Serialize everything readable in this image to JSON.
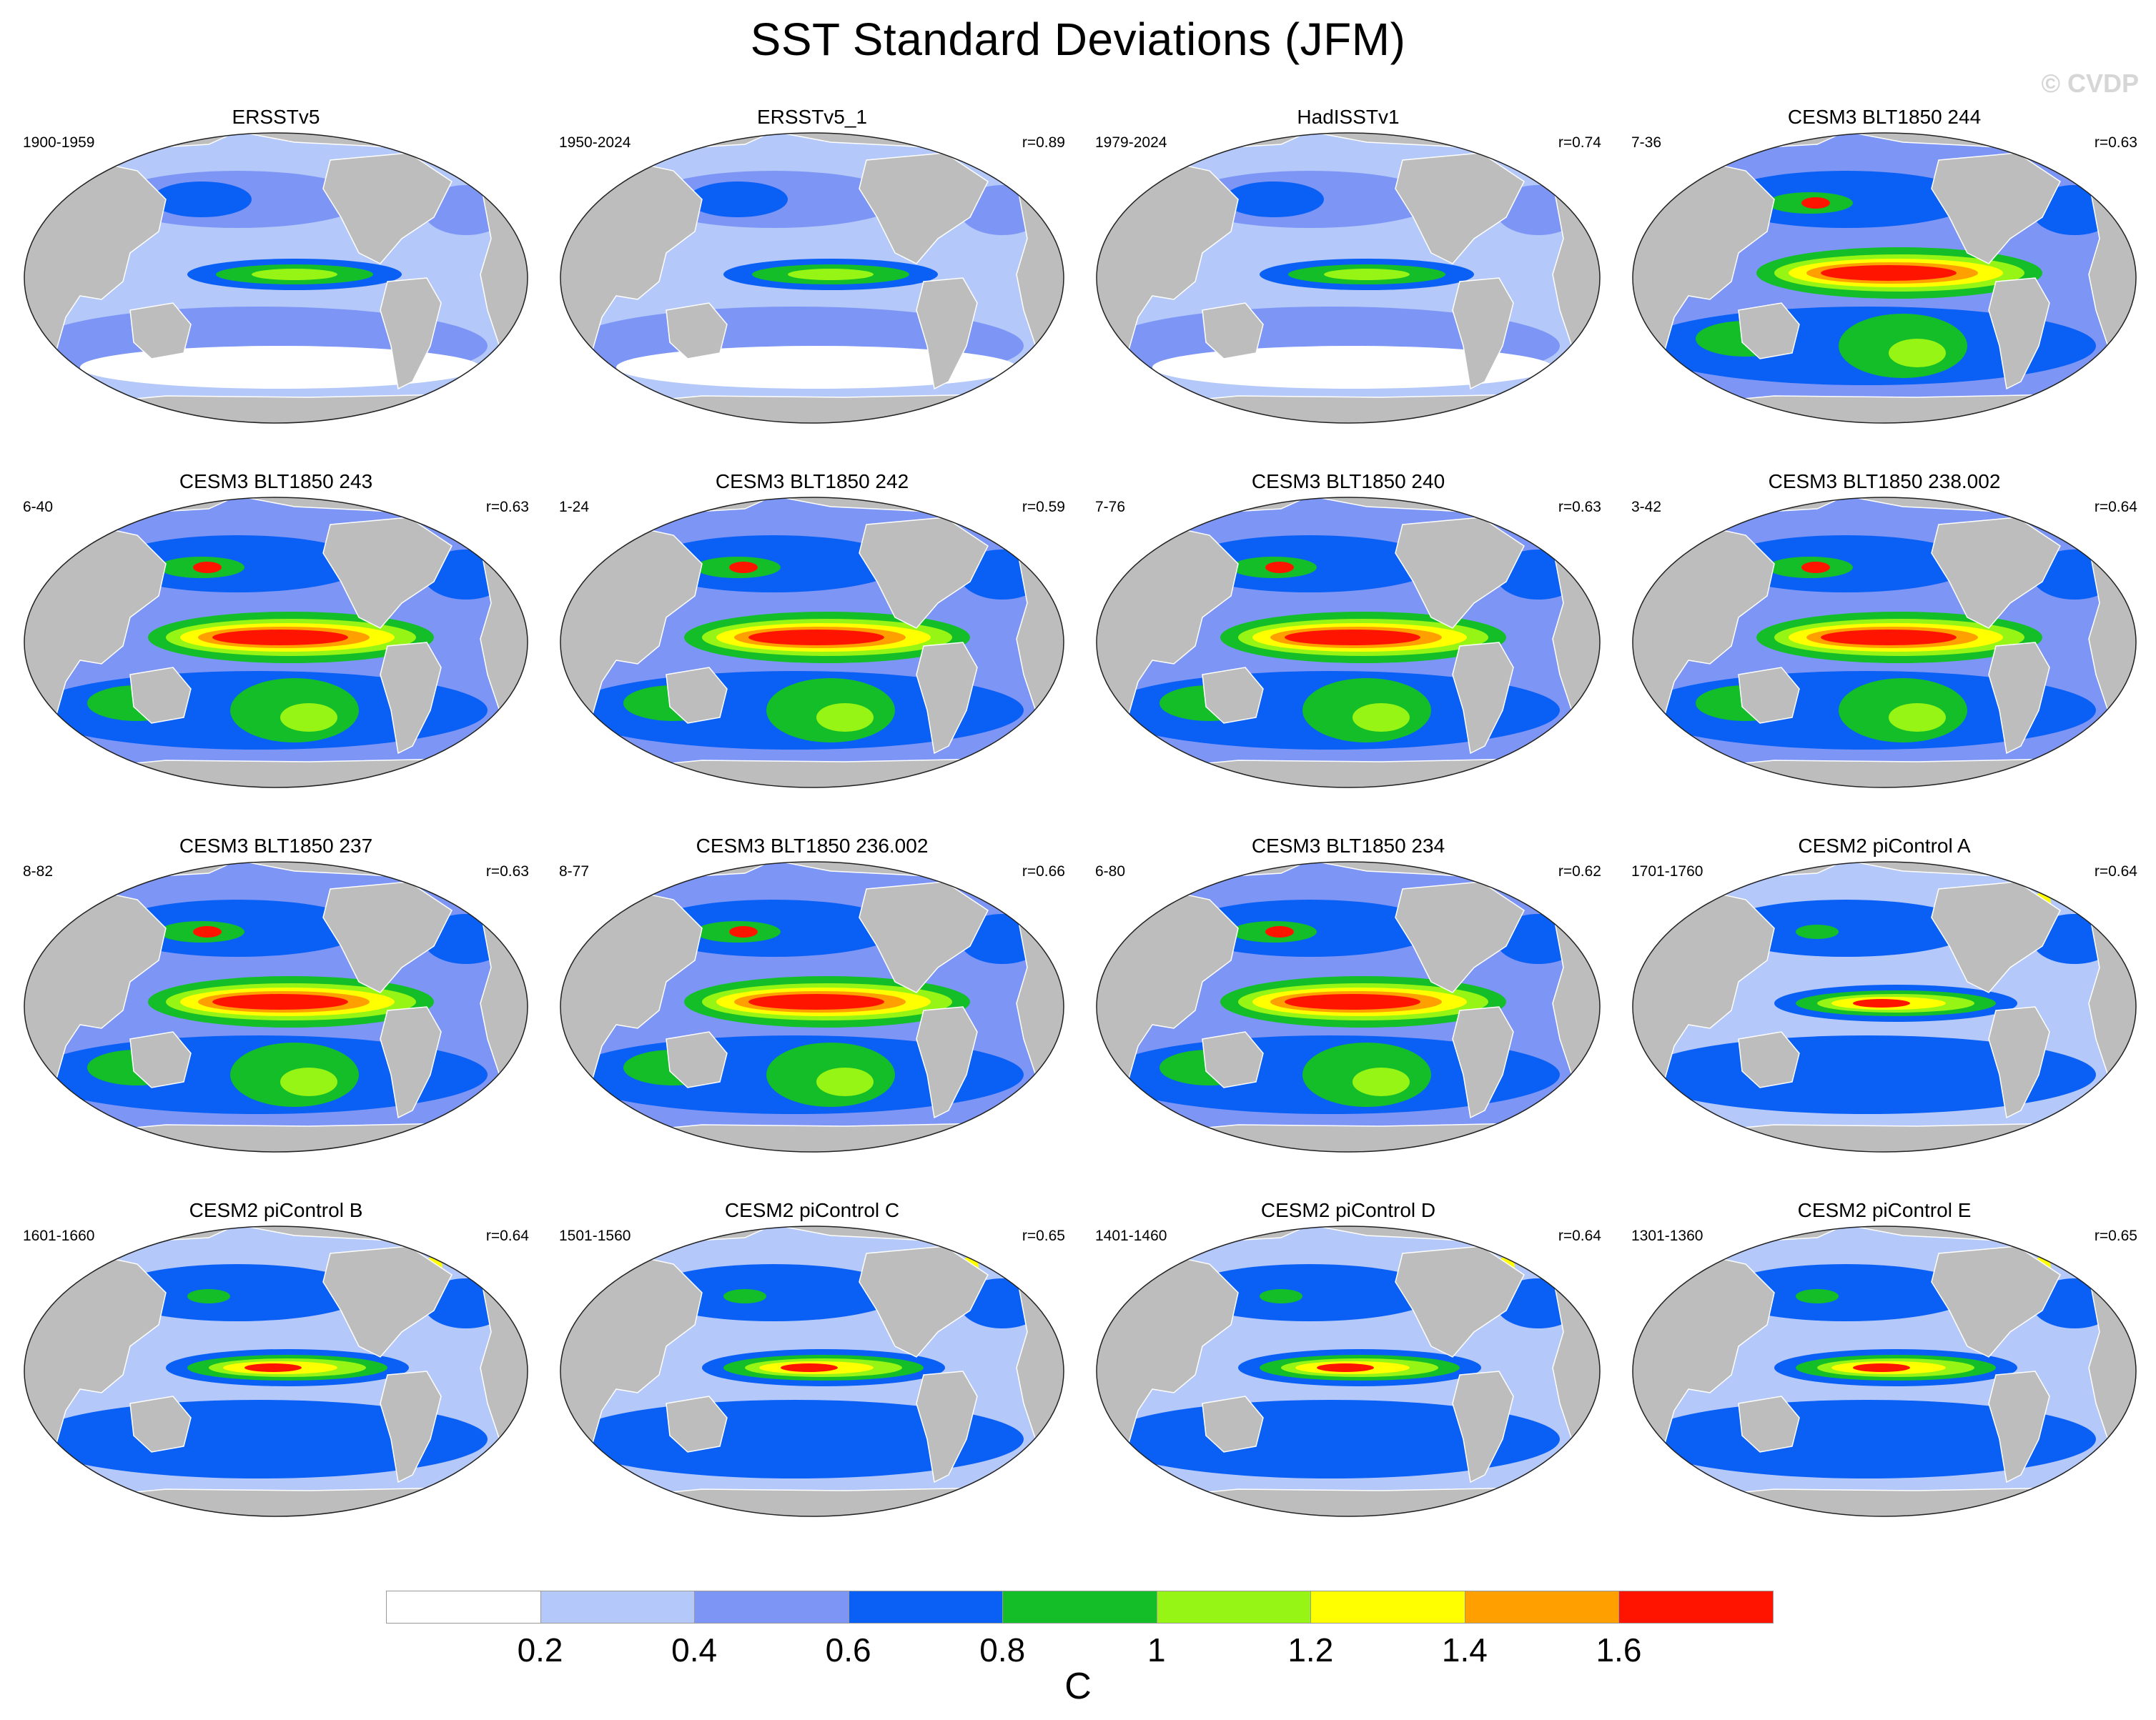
{
  "title": "SST Standard Deviations (JFM)",
  "watermark": "© CVDP",
  "colors": {
    "land": "#bdbdbd",
    "levels": [
      "#ffffff",
      "#b4c8fa",
      "#7d96f5",
      "#0a5ff5",
      "#14be28",
      "#96f514",
      "#ffff00",
      "#ffa000",
      "#ff1400"
    ]
  },
  "panels": [
    {
      "title": "ERSSTv5",
      "period": "1900-1959",
      "corr": "",
      "intensity": 1
    },
    {
      "title": "ERSSTv5_1",
      "period": "1950-2024",
      "corr": "r=0.89",
      "intensity": 1
    },
    {
      "title": "HadISSTv1",
      "period": "1979-2024",
      "corr": "r=0.74",
      "intensity": 1
    },
    {
      "title": "CESM3 BLT1850 244",
      "period": "7-36",
      "corr": "r=0.63",
      "intensity": 3
    },
    {
      "title": "CESM3 BLT1850 243",
      "period": "6-40",
      "corr": "r=0.63",
      "intensity": 3
    },
    {
      "title": "CESM3 BLT1850 242",
      "period": "1-24",
      "corr": "r=0.59",
      "intensity": 3
    },
    {
      "title": "CESM3 BLT1850 240",
      "period": "7-76",
      "corr": "r=0.63",
      "intensity": 3
    },
    {
      "title": "CESM3 BLT1850 238.002",
      "period": "3-42",
      "corr": "r=0.64",
      "intensity": 3
    },
    {
      "title": "CESM3 BLT1850 237",
      "period": "8-82",
      "corr": "r=0.63",
      "intensity": 3
    },
    {
      "title": "CESM3 BLT1850 236.002",
      "period": "8-77",
      "corr": "r=0.66",
      "intensity": 3
    },
    {
      "title": "CESM3 BLT1850 234",
      "period": "6-80",
      "corr": "r=0.62",
      "intensity": 3
    },
    {
      "title": "CESM2 piControl A",
      "period": "1701-1760",
      "corr": "r=0.64",
      "intensity": 2
    },
    {
      "title": "CESM2 piControl B",
      "period": "1601-1660",
      "corr": "r=0.64",
      "intensity": 2
    },
    {
      "title": "CESM2 piControl C",
      "period": "1501-1560",
      "corr": "r=0.65",
      "intensity": 2
    },
    {
      "title": "CESM2 piControl D",
      "period": "1401-1460",
      "corr": "r=0.64",
      "intensity": 2
    },
    {
      "title": "CESM2 piControl E",
      "period": "1301-1360",
      "corr": "r=0.65",
      "intensity": 2
    }
  ],
  "colorbar": {
    "ticks": [
      "0.2",
      "0.4",
      "0.6",
      "0.8",
      "1",
      "1.2",
      "1.4",
      "1.6"
    ],
    "unit": "C"
  }
}
